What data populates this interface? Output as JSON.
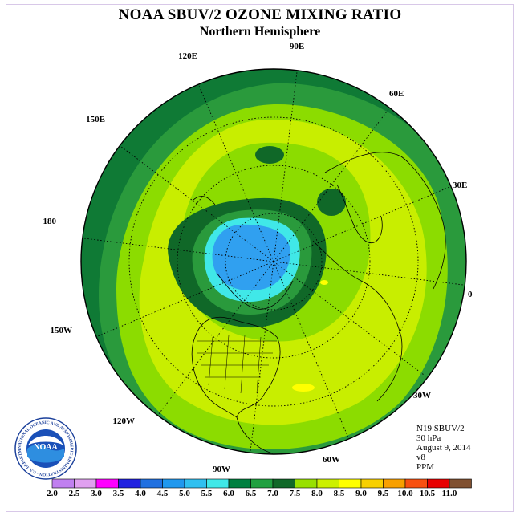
{
  "title": "NOAA SBUV/2 OZONE MIXING RATIO",
  "subtitle": "Northern Hemisphere",
  "longitude_labels": [
    "90E",
    "60E",
    "30E",
    "0",
    "30W",
    "60W",
    "90W",
    "120W",
    "150W",
    "180",
    "150E",
    "120E"
  ],
  "info": {
    "satellite": "N19 SBUV/2",
    "level": "30 hPa",
    "date": "August 9, 2014",
    "version": "v8",
    "units": "PPM"
  },
  "logo": {
    "text": "NOAA",
    "ring_text": "NATIONAL OCEANIC AND ATMOSPHERIC ADMINISTRATION · U.S. DEPARTMENT OF COMMERCE"
  },
  "colorbar": {
    "labels": [
      "2.0",
      "2.5",
      "3.0",
      "3.5",
      "4.0",
      "4.5",
      "5.0",
      "5.5",
      "6.0",
      "6.5",
      "7.0",
      "7.5",
      "8.0",
      "8.5",
      "9.0",
      "9.5",
      "10.0",
      "10.5",
      "11.0"
    ],
    "colors": [
      "#c080f0",
      "#e0a0f0",
      "#ff00ff",
      "#2020e0",
      "#2070e0",
      "#2098ee",
      "#30c0f0",
      "#40e8e8",
      "#008040",
      "#20a040",
      "#106828",
      "#98e000",
      "#ccf000",
      "#ffff00",
      "#f8d000",
      "#f8a000",
      "#f85010",
      "#e80000",
      "#805030"
    ]
  },
  "map_colors": {
    "outer": "#0f7a35",
    "mid": "#2a9a3c",
    "green7": "#8cdc00",
    "yellowgreen": "#c8ee00",
    "dark": "#106828",
    "cyan": "#40e8e8",
    "blue": "#30a0f0",
    "yellow": "#ffff00"
  }
}
